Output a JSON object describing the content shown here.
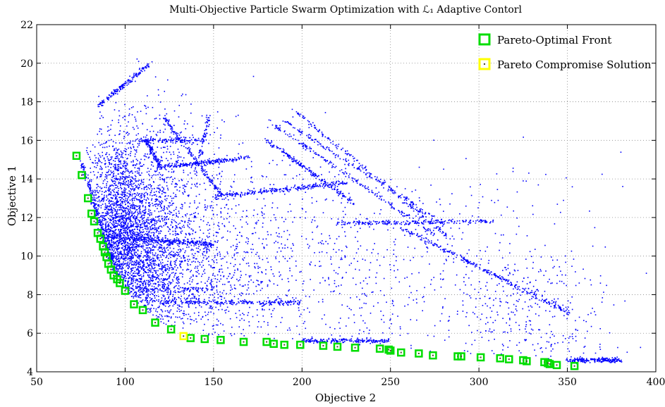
{
  "chart_data": {
    "type": "scatter",
    "title": "Multi-Objective Particle Swarm Optimization with ℒ₁ Adaptive Contorl",
    "xlabel": "Objective 2",
    "ylabel": "Objective 1",
    "xlim": [
      50,
      400
    ],
    "ylim": [
      4,
      22
    ],
    "x_ticks": [
      50,
      100,
      150,
      200,
      250,
      300,
      350,
      400
    ],
    "y_ticks": [
      4,
      6,
      8,
      10,
      12,
      14,
      16,
      18,
      20,
      22
    ],
    "grid": true,
    "legend_placement": "top-right",
    "colors": {
      "cloud": "#0000ff",
      "pareto_face": "#00dd00",
      "compromise": "#ffff00",
      "marker_inner": "#4a4a2a"
    },
    "series": [
      {
        "name": "Pareto-Optimal Front",
        "points": [
          [
            72.5,
            15.2
          ],
          [
            75.5,
            14.2
          ],
          [
            79,
            13.0
          ],
          [
            81,
            12.2
          ],
          [
            82.5,
            11.8
          ],
          [
            84.5,
            11.2
          ],
          [
            86,
            10.9
          ],
          [
            87.5,
            10.5
          ],
          [
            88.5,
            10.2
          ],
          [
            89.5,
            9.95
          ],
          [
            90.5,
            9.6
          ],
          [
            92,
            9.3
          ],
          [
            93.5,
            9.0
          ],
          [
            95.5,
            8.8
          ],
          [
            97,
            8.6
          ],
          [
            100,
            8.2
          ],
          [
            105,
            7.5
          ],
          [
            110,
            7.2
          ],
          [
            117,
            6.55
          ],
          [
            126,
            6.2
          ],
          [
            137,
            5.75
          ],
          [
            145,
            5.7
          ],
          [
            154,
            5.65
          ],
          [
            167,
            5.55
          ],
          [
            180,
            5.55
          ],
          [
            184,
            5.45
          ],
          [
            190,
            5.4
          ],
          [
            199,
            5.4
          ],
          [
            212,
            5.35
          ],
          [
            220,
            5.3
          ],
          [
            230,
            5.25
          ],
          [
            244,
            5.2
          ],
          [
            249,
            5.15
          ],
          [
            250,
            5.1
          ],
          [
            256,
            5.0
          ],
          [
            266,
            4.95
          ],
          [
            274,
            4.85
          ],
          [
            288,
            4.8
          ],
          [
            290,
            4.8
          ],
          [
            301,
            4.75
          ],
          [
            312,
            4.7
          ],
          [
            317,
            4.65
          ],
          [
            325,
            4.6
          ],
          [
            327,
            4.55
          ],
          [
            337,
            4.5
          ],
          [
            339,
            4.45
          ],
          [
            340,
            4.4
          ],
          [
            344,
            4.35
          ],
          [
            354,
            4.3
          ]
        ]
      },
      {
        "name": "Pareto Compromise Solution",
        "points": [
          [
            133,
            5.85
          ]
        ]
      }
    ],
    "cloud": {
      "description": "dominated particle positions (blue dots)",
      "filaments": [
        {
          "from": [
            85,
            17.8
          ],
          "to": [
            113,
            19.9
          ],
          "n": 160
        },
        {
          "from": [
            75,
            15.0
          ],
          "to": [
            100,
            7.5
          ],
          "n": 260
        },
        {
          "from": [
            90,
            11.0
          ],
          "to": [
            150,
            10.6
          ],
          "n": 260
        },
        {
          "from": [
            103,
            16.0
          ],
          "to": [
            145,
            16.0
          ],
          "n": 120
        },
        {
          "from": [
            112,
            16.0
          ],
          "to": [
            120,
            14.6
          ],
          "n": 120
        },
        {
          "from": [
            118,
            14.6
          ],
          "to": [
            170,
            15.1
          ],
          "n": 220
        },
        {
          "from": [
            122,
            17.2
          ],
          "to": [
            155,
            13.1
          ],
          "n": 160
        },
        {
          "from": [
            151,
            13.1
          ],
          "to": [
            225,
            13.8
          ],
          "n": 260
        },
        {
          "from": [
            180,
            16.0
          ],
          "to": [
            230,
            12.7
          ],
          "n": 200
        },
        {
          "from": [
            219,
            11.7
          ],
          "to": [
            310,
            11.8
          ],
          "n": 220
        },
        {
          "from": [
            181,
            17.0
          ],
          "to": [
            275,
            11.1
          ],
          "n": 200
        },
        {
          "from": [
            190,
            17.0
          ],
          "to": [
            280,
            11.7
          ],
          "n": 180
        },
        {
          "from": [
            195,
            17.6
          ],
          "to": [
            285,
            10.8
          ],
          "n": 180
        },
        {
          "from": [
            255,
            11.5
          ],
          "to": [
            352,
            7.0
          ],
          "n": 280
        },
        {
          "from": [
            120,
            7.6
          ],
          "to": [
            200,
            7.6
          ],
          "n": 220
        },
        {
          "from": [
            150,
            8.3
          ],
          "to": [
            105,
            8.3
          ],
          "n": 80
        },
        {
          "from": [
            200,
            5.6
          ],
          "to": [
            250,
            5.6
          ],
          "n": 220
        },
        {
          "from": [
            350,
            4.6
          ],
          "to": [
            380,
            4.6
          ],
          "n": 220
        },
        {
          "from": [
            140,
            14.5
          ],
          "to": [
            148,
            17.3
          ],
          "n": 60
        }
      ],
      "regions": [
        {
          "center": [
            95,
            11.5
          ],
          "spread": [
            8,
            2.4
          ],
          "n": 1800
        },
        {
          "center": [
            110,
            9.5
          ],
          "spread": [
            12,
            2.2
          ],
          "n": 1500
        },
        {
          "center": [
            118,
            12.5
          ],
          "spread": [
            18,
            2.8
          ],
          "n": 900
        },
        {
          "center": [
            135,
            9.0
          ],
          "spread": [
            25,
            2.0
          ],
          "n": 700
        },
        {
          "center": [
            165,
            10.5
          ],
          "spread": [
            40,
            3.0
          ],
          "n": 500
        },
        {
          "center": [
            240,
            9.0
          ],
          "spread": [
            60,
            3.0
          ],
          "n": 600
        },
        {
          "center": [
            330,
            7.0
          ],
          "spread": [
            25,
            2.0
          ],
          "n": 350
        }
      ]
    }
  }
}
